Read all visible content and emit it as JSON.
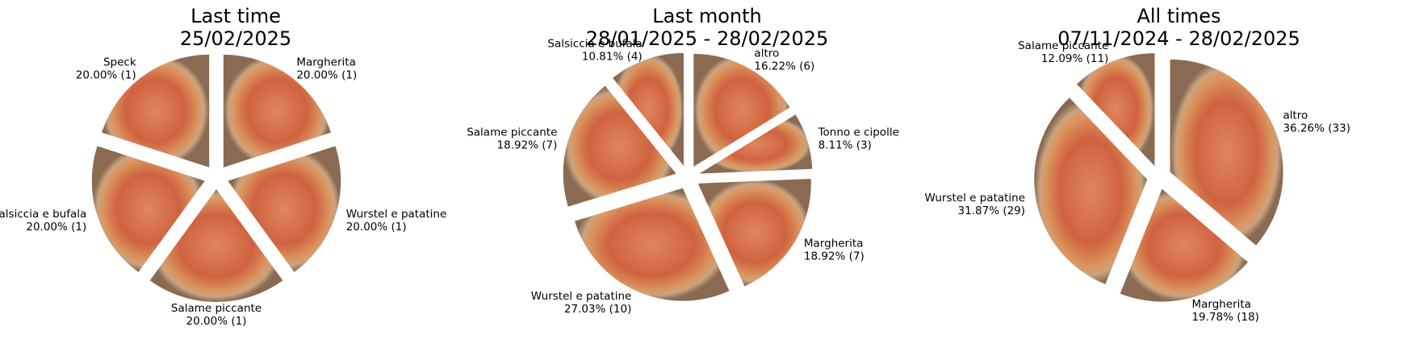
{
  "chart_data": [
    {
      "type": "pie",
      "title": "Last time",
      "subtitle": "25/02/2025",
      "categories": [
        "Speck",
        "Salsiccia e bufala",
        "Salame piccante",
        "Wurstel e patatine",
        "Margherita"
      ],
      "values": [
        20.0,
        20.0,
        20.0,
        20.0,
        20.0
      ],
      "counts": [
        1,
        1,
        1,
        1,
        1
      ],
      "percent_labels": [
        "20.00% (1)",
        "20.00% (1)",
        "20.00% (1)",
        "20.00% (1)",
        "20.00% (1)"
      ],
      "slice_fill": "pizza-photo"
    },
    {
      "type": "pie",
      "title": "Last month",
      "subtitle": "28/01/2025 - 28/02/2025",
      "categories": [
        "Salsiccia e bufala",
        "Salame piccante",
        "Wurstel e patatine",
        "Margherita",
        "Tonno e cipolle",
        "altro"
      ],
      "values": [
        10.81,
        18.92,
        27.03,
        18.92,
        8.11,
        16.22
      ],
      "counts": [
        4,
        7,
        10,
        7,
        3,
        6
      ],
      "percent_labels": [
        "10.81% (4)",
        "18.92% (7)",
        "27.03% (10)",
        "18.92% (7)",
        "8.11% (3)",
        "16.22% (6)"
      ],
      "slice_fill": "pizza-photo"
    },
    {
      "type": "pie",
      "title": "All times",
      "subtitle": "07/11/2024 - 28/02/2025",
      "categories": [
        "Salame piccante",
        "Wurstel e patatine",
        "Margherita",
        "altro"
      ],
      "values": [
        12.09,
        31.87,
        19.78,
        36.26
      ],
      "counts": [
        11,
        29,
        18,
        33
      ],
      "percent_labels": [
        "12.09% (11)",
        "31.87% (29)",
        "19.78% (18)",
        "36.26% (33)"
      ],
      "slice_fill": "pizza-photo"
    }
  ]
}
